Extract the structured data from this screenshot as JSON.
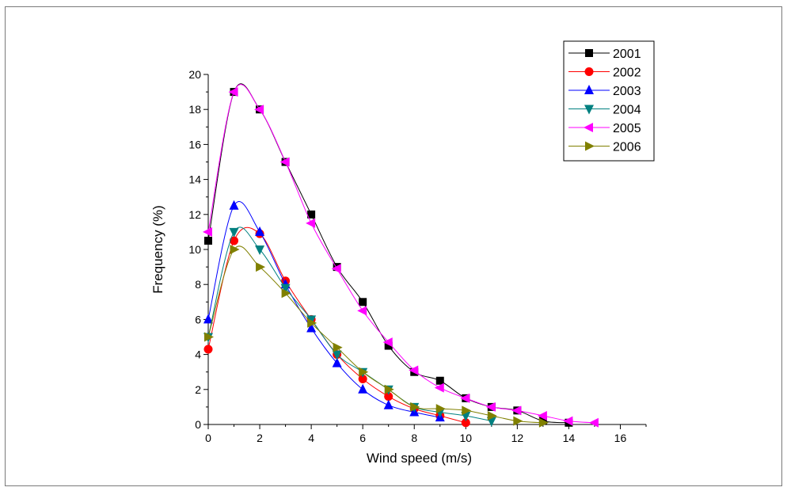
{
  "chart_data": {
    "type": "line",
    "title": "",
    "xlabel": "Wind speed (m/s)",
    "ylabel": "Frequency (%)",
    "xlim": [
      0,
      17
    ],
    "ylim": [
      0,
      20
    ],
    "xticks": [
      "0",
      "2",
      "4",
      "6",
      "8",
      "10",
      "12",
      "14",
      "16"
    ],
    "yticks": [
      "0",
      "2",
      "4",
      "6",
      "8",
      "10",
      "12",
      "14",
      "16",
      "18",
      "20"
    ],
    "legend_position": "top-right",
    "grid": false,
    "series": [
      {
        "name": "2001",
        "color": "#000000",
        "marker": "square",
        "x": [
          0,
          1,
          2,
          3,
          4,
          5,
          6,
          7,
          8,
          9,
          10,
          11,
          12,
          13,
          14
        ],
        "y": [
          10.5,
          19,
          18,
          15,
          12,
          9,
          7,
          4.5,
          3,
          2.5,
          1.5,
          1,
          0.8,
          0.2,
          0.1
        ]
      },
      {
        "name": "2002",
        "color": "#ff0000",
        "marker": "circle",
        "x": [
          0,
          1,
          2,
          3,
          4,
          5,
          6,
          7,
          8,
          9,
          10
        ],
        "y": [
          4.3,
          10.5,
          10.9,
          8.2,
          6,
          4,
          2.6,
          1.6,
          0.9,
          0.5,
          0.1
        ]
      },
      {
        "name": "2003",
        "color": "#0000ff",
        "marker": "triangle-up",
        "x": [
          0,
          1,
          2,
          3,
          4,
          5,
          6,
          7,
          8,
          9
        ],
        "y": [
          6,
          12.5,
          11,
          8,
          5.5,
          3.5,
          2,
          1.1,
          0.7,
          0.4
        ]
      },
      {
        "name": "2004",
        "color": "#008080",
        "marker": "triangle-down",
        "x": [
          0,
          1,
          2,
          3,
          4,
          5,
          6,
          7,
          8,
          9,
          10,
          11
        ],
        "y": [
          5,
          11,
          10,
          7.8,
          6,
          4,
          3,
          2,
          1,
          0.7,
          0.5,
          0.2
        ]
      },
      {
        "name": "2005",
        "color": "#ff00ff",
        "marker": "triangle-left",
        "x": [
          0,
          1,
          2,
          3,
          4,
          5,
          6,
          7,
          8,
          9,
          10,
          11,
          12,
          13,
          14,
          15
        ],
        "y": [
          11,
          19,
          18,
          15,
          11.5,
          8.9,
          6.5,
          4.7,
          3.1,
          2.1,
          1.5,
          1,
          0.8,
          0.5,
          0.2,
          0.1
        ]
      },
      {
        "name": "2006",
        "color": "#808000",
        "marker": "triangle-right",
        "x": [
          0,
          1,
          2,
          3,
          4,
          5,
          6,
          7,
          8,
          9,
          10,
          11,
          12,
          13
        ],
        "y": [
          5,
          10,
          9,
          7.5,
          5.8,
          4.4,
          3,
          2,
          1,
          0.9,
          0.8,
          0.5,
          0.2,
          0.1
        ]
      }
    ]
  }
}
